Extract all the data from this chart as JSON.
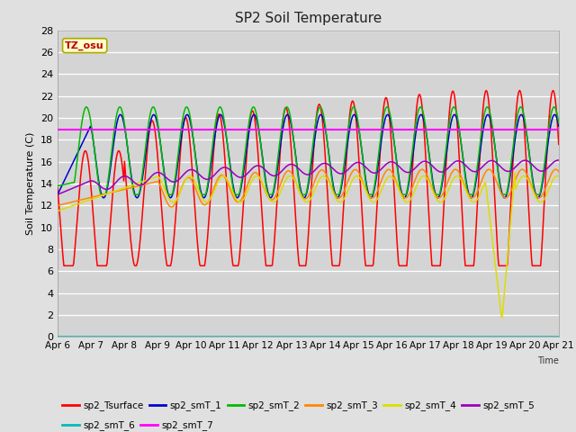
{
  "title": "SP2 Soil Temperature",
  "ylabel": "Soil Temperature (C)",
  "xlabel": "Time",
  "ylim": [
    0,
    28
  ],
  "hline_value": 18.9,
  "tz_label": "TZ_osu",
  "tz_bg_color": "#ffffcc",
  "tz_text_color": "#bb0000",
  "tz_edge_color": "#aaaa00",
  "fig_bg_color": "#e0e0e0",
  "plot_bg_color": "#d4d4d4",
  "grid_color": "#ffffff",
  "series_colors": {
    "sp2_Tsurface": "#ff0000",
    "sp2_smT_1": "#0000cc",
    "sp2_smT_2": "#00bb00",
    "sp2_smT_3": "#ff8800",
    "sp2_smT_4": "#dddd00",
    "sp2_smT_5": "#9900bb",
    "sp2_smT_6": "#00bbbb",
    "sp2_smT_7": "#ff00ff"
  },
  "x_tick_labels": [
    "Apr 6",
    "Apr 7",
    "Apr 8",
    "Apr 9",
    "Apr 10",
    "Apr 11",
    "Apr 12",
    "Apr 13",
    "Apr 14",
    "Apr 15",
    "Apr 16",
    "Apr 17",
    "Apr 18",
    "Apr 19",
    "Apr 20",
    "Apr 21"
  ],
  "legend_row1": [
    "sp2_Tsurface",
    "sp2_smT_1",
    "sp2_smT_2",
    "sp2_smT_3",
    "sp2_smT_4",
    "sp2_smT_5"
  ],
  "legend_row2": [
    "sp2_smT_6",
    "sp2_smT_7"
  ],
  "num_points": 720
}
